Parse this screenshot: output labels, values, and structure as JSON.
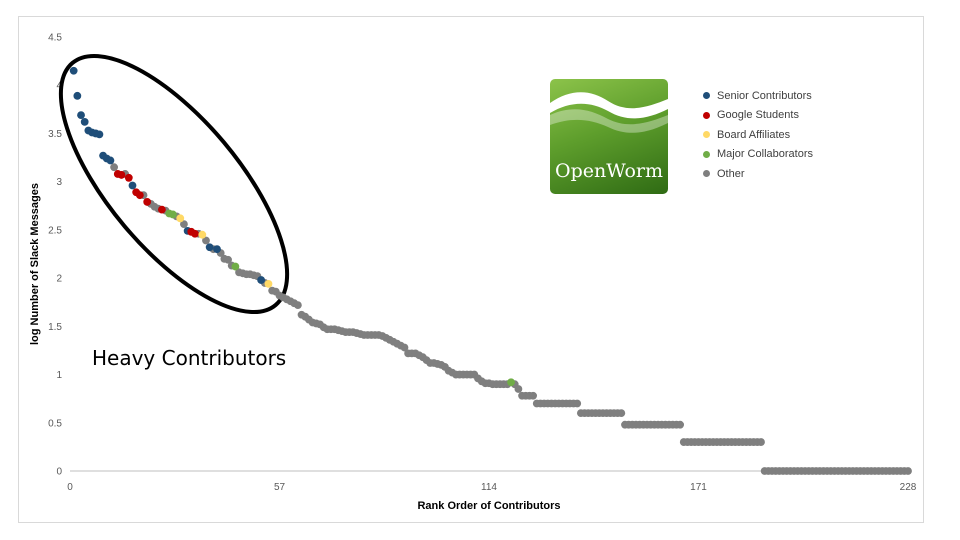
{
  "chart_data": {
    "type": "scatter",
    "xlabel": "Rank Order of Contributors",
    "ylabel": "log Number of Slack Messages",
    "xlim": [
      0,
      228
    ],
    "ylim": [
      0,
      4.5
    ],
    "x_ticks": [
      "0",
      "57",
      "114",
      "171",
      "228"
    ],
    "y_ticks": [
      "0",
      "0.5",
      "1",
      "1.5",
      "2",
      "2.5",
      "3",
      "3.5",
      "4",
      "4.5"
    ],
    "grid": false,
    "legend_position": "right",
    "annotation": "Heavy Contributors",
    "series": [
      {
        "name": "Senior Contributors",
        "color": "#1f4e79",
        "points": [
          [
            1,
            4.15
          ],
          [
            2,
            3.89
          ],
          [
            3,
            3.69
          ],
          [
            4,
            3.62
          ],
          [
            5,
            3.53
          ],
          [
            6,
            3.51
          ],
          [
            7,
            3.5
          ],
          [
            8,
            3.49
          ],
          [
            9,
            3.27
          ],
          [
            10,
            3.24
          ],
          [
            11,
            3.22
          ],
          [
            17,
            2.96
          ],
          [
            32,
            2.49
          ],
          [
            38,
            2.32
          ],
          [
            40,
            2.3
          ],
          [
            52,
            1.98
          ]
        ]
      },
      {
        "name": "Google Students",
        "color": "#c00000",
        "points": [
          [
            13,
            3.08
          ],
          [
            14,
            3.07
          ],
          [
            16,
            3.04
          ],
          [
            18,
            2.89
          ],
          [
            19,
            2.86
          ],
          [
            21,
            2.79
          ],
          [
            25,
            2.71
          ],
          [
            33,
            2.48
          ],
          [
            34,
            2.46
          ]
        ]
      },
      {
        "name": "Board Affiliates",
        "color": "#ffd966",
        "points": [
          [
            30,
            2.62
          ],
          [
            36,
            2.45
          ],
          [
            54,
            1.94
          ]
        ]
      },
      {
        "name": "Major Collaborators",
        "color": "#70ad47",
        "points": [
          [
            27,
            2.67
          ],
          [
            28,
            2.66
          ],
          [
            45,
            2.12
          ],
          [
            120,
            0.92
          ]
        ]
      },
      {
        "name": "Other",
        "color": "#7f7f7f",
        "points": [
          [
            12,
            3.15
          ],
          [
            15,
            3.08
          ],
          [
            20,
            2.86
          ],
          [
            22,
            2.77
          ],
          [
            23,
            2.74
          ],
          [
            24,
            2.72
          ],
          [
            26,
            2.7
          ],
          [
            29,
            2.64
          ],
          [
            31,
            2.56
          ],
          [
            35,
            2.46
          ],
          [
            37,
            2.39
          ],
          [
            39,
            2.3
          ],
          [
            41,
            2.26
          ],
          [
            42,
            2.2
          ],
          [
            43,
            2.19
          ],
          [
            44,
            2.13
          ],
          [
            46,
            2.06
          ],
          [
            47,
            2.05
          ],
          [
            48,
            2.04
          ],
          [
            49,
            2.04
          ],
          [
            50,
            2.03
          ],
          [
            51,
            2.02
          ],
          [
            53,
            1.95
          ],
          [
            55,
            1.87
          ],
          [
            56,
            1.86
          ],
          [
            57,
            1.82
          ],
          [
            58,
            1.8
          ],
          [
            59,
            1.78
          ],
          [
            60,
            1.76
          ],
          [
            61,
            1.74
          ],
          [
            62,
            1.72
          ],
          [
            63,
            1.62
          ],
          [
            64,
            1.6
          ],
          [
            65,
            1.57
          ],
          [
            66,
            1.54
          ],
          [
            67,
            1.53
          ],
          [
            68,
            1.52
          ],
          [
            69,
            1.49
          ],
          [
            70,
            1.47
          ],
          [
            71,
            1.47
          ],
          [
            72,
            1.47
          ],
          [
            73,
            1.46
          ],
          [
            74,
            1.45
          ],
          [
            75,
            1.44
          ],
          [
            76,
            1.44
          ],
          [
            77,
            1.44
          ],
          [
            78,
            1.43
          ],
          [
            79,
            1.42
          ],
          [
            80,
            1.41
          ],
          [
            81,
            1.41
          ],
          [
            82,
            1.41
          ],
          [
            83,
            1.41
          ],
          [
            84,
            1.41
          ],
          [
            85,
            1.4
          ],
          [
            86,
            1.38
          ],
          [
            87,
            1.36
          ],
          [
            88,
            1.34
          ],
          [
            89,
            1.32
          ],
          [
            90,
            1.3
          ],
          [
            91,
            1.28
          ],
          [
            92,
            1.22
          ],
          [
            93,
            1.22
          ],
          [
            94,
            1.22
          ],
          [
            95,
            1.2
          ],
          [
            96,
            1.18
          ],
          [
            97,
            1.15
          ],
          [
            98,
            1.12
          ],
          [
            99,
            1.12
          ],
          [
            100,
            1.11
          ],
          [
            101,
            1.1
          ],
          [
            102,
            1.08
          ],
          [
            103,
            1.04
          ],
          [
            104,
            1.02
          ],
          [
            105,
            1.0
          ],
          [
            106,
            1.0
          ],
          [
            107,
            1.0
          ],
          [
            108,
            1.0
          ],
          [
            109,
            1.0
          ],
          [
            110,
            1.0
          ],
          [
            111,
            0.96
          ],
          [
            112,
            0.93
          ],
          [
            113,
            0.91
          ],
          [
            114,
            0.91
          ],
          [
            115,
            0.9
          ],
          [
            116,
            0.9
          ],
          [
            117,
            0.9
          ],
          [
            118,
            0.9
          ],
          [
            119,
            0.9
          ],
          [
            121,
            0.9
          ],
          [
            122,
            0.85
          ],
          [
            123,
            0.78
          ],
          [
            124,
            0.78
          ],
          [
            125,
            0.78
          ],
          [
            126,
            0.78
          ],
          [
            127,
            0.7
          ],
          [
            128,
            0.7
          ],
          [
            129,
            0.7
          ],
          [
            130,
            0.7
          ],
          [
            131,
            0.7
          ],
          [
            132,
            0.7
          ],
          [
            133,
            0.7
          ],
          [
            134,
            0.7
          ],
          [
            135,
            0.7
          ],
          [
            136,
            0.7
          ],
          [
            137,
            0.7
          ],
          [
            138,
            0.7
          ],
          [
            139,
            0.6
          ],
          [
            140,
            0.6
          ],
          [
            141,
            0.6
          ],
          [
            142,
            0.6
          ],
          [
            143,
            0.6
          ],
          [
            144,
            0.6
          ],
          [
            145,
            0.6
          ],
          [
            146,
            0.6
          ],
          [
            147,
            0.6
          ],
          [
            148,
            0.6
          ],
          [
            149,
            0.6
          ],
          [
            150,
            0.6
          ],
          [
            151,
            0.48
          ],
          [
            152,
            0.48
          ],
          [
            153,
            0.48
          ],
          [
            154,
            0.48
          ],
          [
            155,
            0.48
          ],
          [
            156,
            0.48
          ],
          [
            157,
            0.48
          ],
          [
            158,
            0.48
          ],
          [
            159,
            0.48
          ],
          [
            160,
            0.48
          ],
          [
            161,
            0.48
          ],
          [
            162,
            0.48
          ],
          [
            163,
            0.48
          ],
          [
            164,
            0.48
          ],
          [
            165,
            0.48
          ],
          [
            166,
            0.48
          ],
          [
            167,
            0.3
          ],
          [
            168,
            0.3
          ],
          [
            169,
            0.3
          ],
          [
            170,
            0.3
          ],
          [
            171,
            0.3
          ],
          [
            172,
            0.3
          ],
          [
            173,
            0.3
          ],
          [
            174,
            0.3
          ],
          [
            175,
            0.3
          ],
          [
            176,
            0.3
          ],
          [
            177,
            0.3
          ],
          [
            178,
            0.3
          ],
          [
            179,
            0.3
          ],
          [
            180,
            0.3
          ],
          [
            181,
            0.3
          ],
          [
            182,
            0.3
          ],
          [
            183,
            0.3
          ],
          [
            184,
            0.3
          ],
          [
            185,
            0.3
          ],
          [
            186,
            0.3
          ],
          [
            187,
            0.3
          ],
          [
            188,
            0.3
          ],
          [
            189,
            0
          ],
          [
            190,
            0
          ],
          [
            191,
            0
          ],
          [
            192,
            0
          ],
          [
            193,
            0
          ],
          [
            194,
            0
          ],
          [
            195,
            0
          ],
          [
            196,
            0
          ],
          [
            197,
            0
          ],
          [
            198,
            0
          ],
          [
            199,
            0
          ],
          [
            200,
            0
          ],
          [
            201,
            0
          ],
          [
            202,
            0
          ],
          [
            203,
            0
          ],
          [
            204,
            0
          ],
          [
            205,
            0
          ],
          [
            206,
            0
          ],
          [
            207,
            0
          ],
          [
            208,
            0
          ],
          [
            209,
            0
          ],
          [
            210,
            0
          ],
          [
            211,
            0
          ],
          [
            212,
            0
          ],
          [
            213,
            0
          ],
          [
            214,
            0
          ],
          [
            215,
            0
          ],
          [
            216,
            0
          ],
          [
            217,
            0
          ],
          [
            218,
            0
          ],
          [
            219,
            0
          ],
          [
            220,
            0
          ],
          [
            221,
            0
          ],
          [
            222,
            0
          ],
          [
            223,
            0
          ],
          [
            224,
            0
          ],
          [
            225,
            0
          ],
          [
            226,
            0
          ],
          [
            227,
            0
          ],
          [
            228,
            0
          ]
        ]
      }
    ]
  },
  "logo": {
    "text": "OpenWorm",
    "name": "openworm-logo"
  }
}
